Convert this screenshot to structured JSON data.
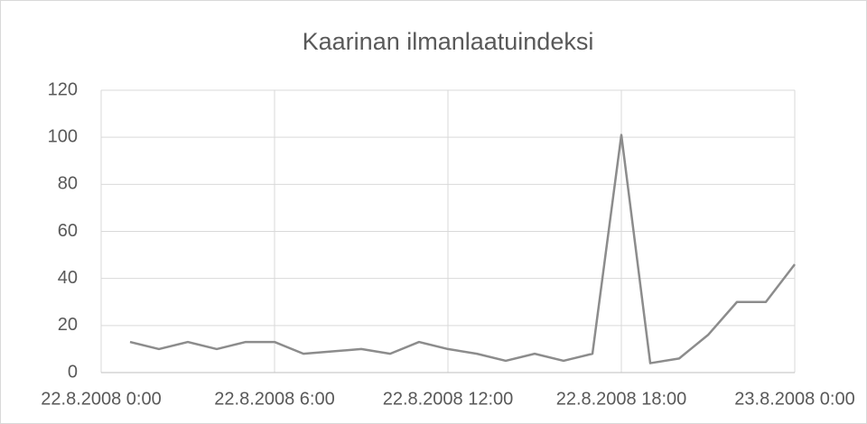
{
  "chart_data": {
    "type": "line",
    "title": "Kaarinan ilmanlaatuindeksi",
    "x": [
      "2008-08-22T01:00",
      "2008-08-22T02:00",
      "2008-08-22T03:00",
      "2008-08-22T04:00",
      "2008-08-22T05:00",
      "2008-08-22T06:00",
      "2008-08-22T07:00",
      "2008-08-22T08:00",
      "2008-08-22T09:00",
      "2008-08-22T10:00",
      "2008-08-22T11:00",
      "2008-08-22T12:00",
      "2008-08-22T13:00",
      "2008-08-22T14:00",
      "2008-08-22T15:00",
      "2008-08-22T16:00",
      "2008-08-22T17:00",
      "2008-08-22T18:00",
      "2008-08-22T19:00",
      "2008-08-22T20:00",
      "2008-08-22T21:00",
      "2008-08-22T22:00",
      "2008-08-22T23:00",
      "2008-08-23T00:00"
    ],
    "series": [
      {
        "color": "#8c8c8c",
        "values": [
          13,
          10,
          13,
          10,
          13,
          13,
          8,
          9,
          10,
          8,
          13,
          10,
          8,
          5,
          8,
          5,
          8,
          101,
          4,
          6,
          16,
          30,
          30,
          46
        ]
      }
    ],
    "xlim": [
      "2008-08-22T00:00",
      "2008-08-23T00:00"
    ],
    "xticks": [
      {
        "value": "2008-08-22T00:00",
        "label": "22.8.2008 0:00"
      },
      {
        "value": "2008-08-22T06:00",
        "label": "22.8.2008 6:00"
      },
      {
        "value": "2008-08-22T12:00",
        "label": "22.8.2008 12:00"
      },
      {
        "value": "2008-08-22T18:00",
        "label": "22.8.2008 18:00"
      },
      {
        "value": "2008-08-23T00:00",
        "label": "23.8.2008 0:00"
      }
    ],
    "ylim": [
      0,
      120
    ],
    "yticks": [
      0,
      20,
      40,
      60,
      80,
      100,
      120
    ],
    "grid": true
  }
}
